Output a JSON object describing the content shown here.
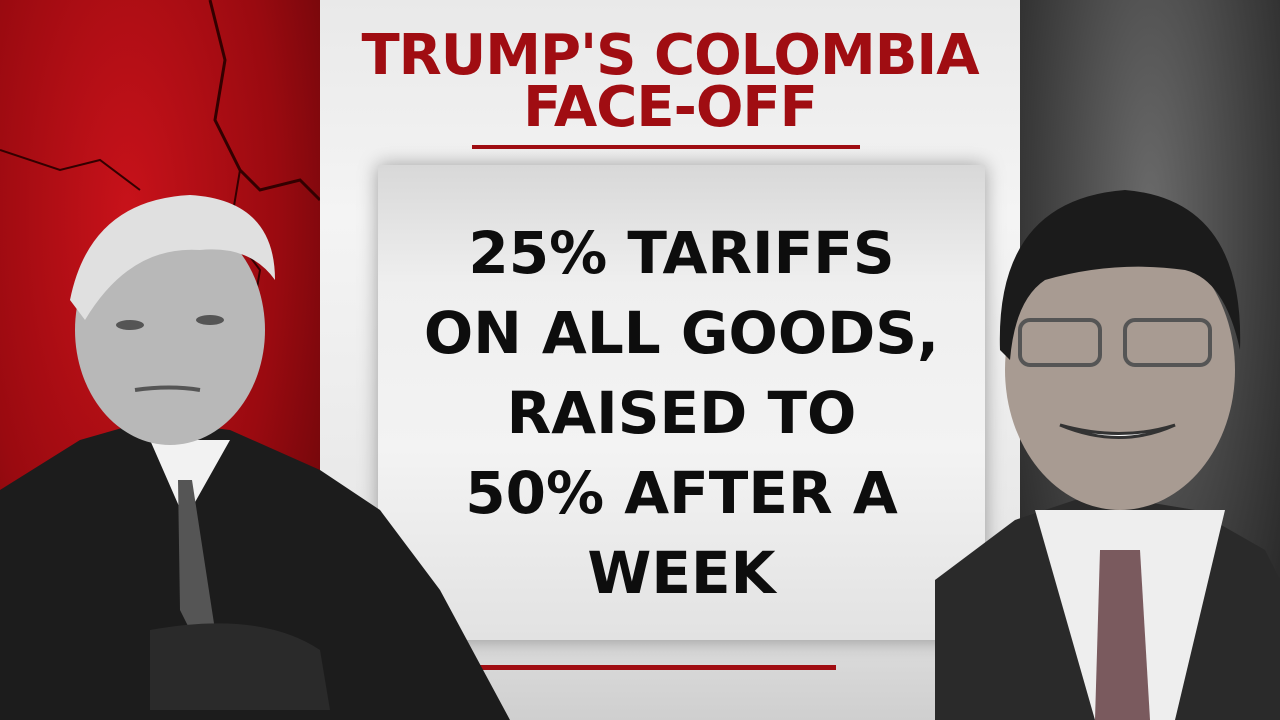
{
  "title": {
    "line1": "TRUMP'S COLOMBIA",
    "line2": "FACE-OFF"
  },
  "card": {
    "lines": [
      "25% TARIFFS",
      "ON ALL GOODS,",
      "RAISED TO",
      "50% AFTER A",
      "WEEK"
    ]
  },
  "colors": {
    "accent_red": "#a00d12",
    "text": "#0d0d0d",
    "left_panel": "#b30f16",
    "right_panel": "#4a4a4a"
  },
  "images": {
    "left": "portrait-trump",
    "right": "portrait-petro"
  }
}
